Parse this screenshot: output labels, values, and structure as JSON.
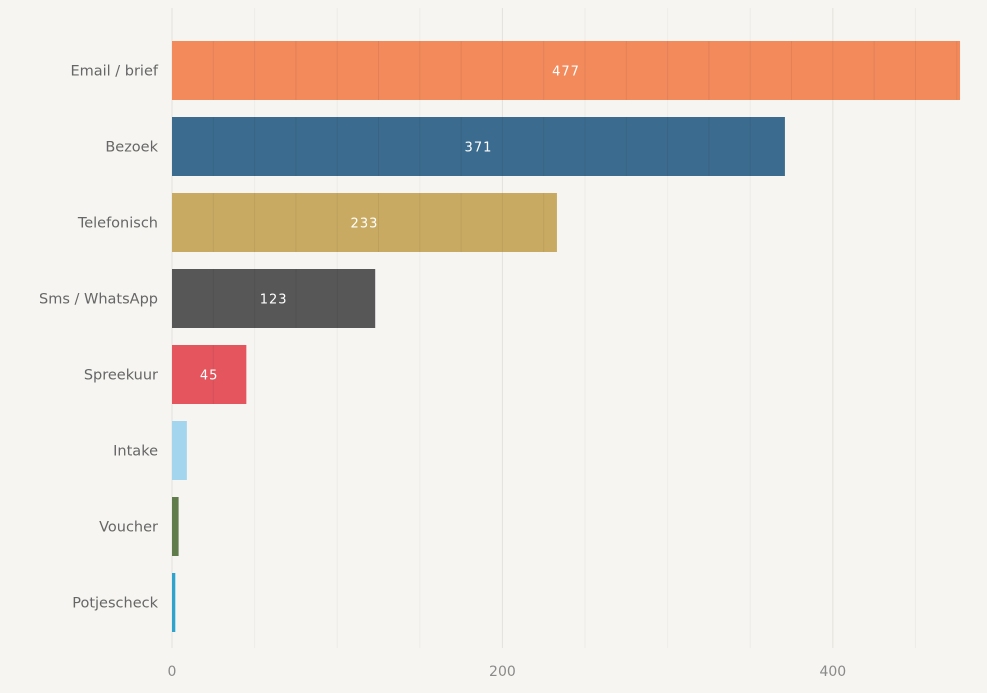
{
  "chart_data": {
    "type": "bar",
    "orientation": "horizontal",
    "title": "",
    "xlabel": "",
    "ylabel": "",
    "categories": [
      "Email / brief",
      "Bezoek",
      "Telefonisch",
      "Sms / WhatsApp",
      "Spreekuur",
      "Intake",
      "Voucher",
      "Potjescheck"
    ],
    "values": [
      477,
      371,
      233,
      123,
      45,
      9,
      4,
      2
    ],
    "data_labels": [
      "477",
      "371",
      "233",
      "123",
      "45",
      "",
      "",
      ""
    ],
    "colors": [
      "#f28a5c",
      "#3b6b8e",
      "#c9aa62",
      "#575757",
      "#e4555e",
      "#a3d6ee",
      "#5f7c4a",
      "#2ea3cd"
    ],
    "xlim": [
      0,
      480
    ],
    "x_ticks": [
      0,
      200,
      400
    ],
    "x_tick_labels": [
      "0",
      "200",
      "400"
    ],
    "grid": true,
    "legend": "none"
  }
}
